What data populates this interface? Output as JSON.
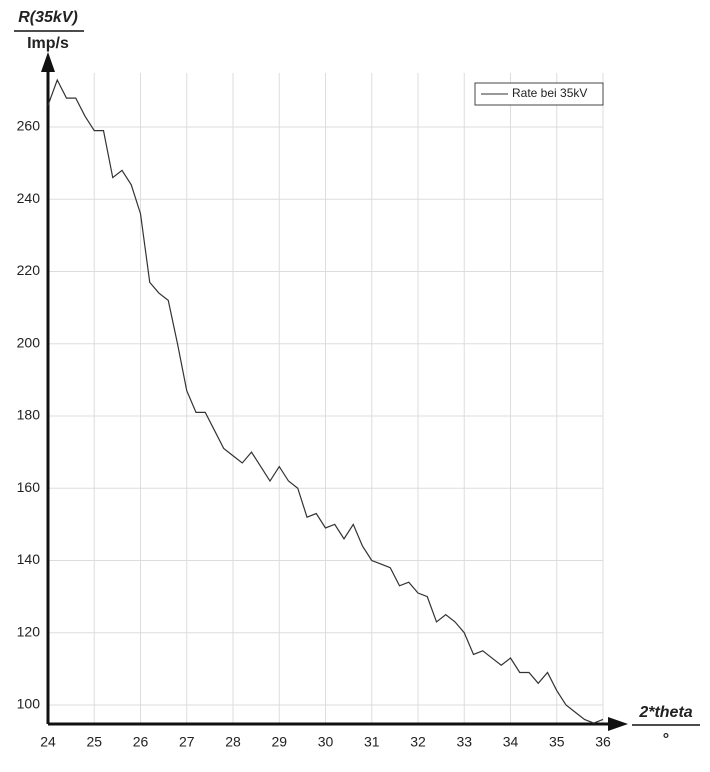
{
  "chart_data": {
    "type": "line",
    "y_label": "R(35kV)",
    "y_unit": "Imp/s",
    "x_label": "2*theta",
    "x_unit": "°",
    "x": [
      24,
      24.2,
      24.4,
      24.6,
      24.8,
      25,
      25.2,
      25.4,
      25.6,
      25.8,
      26,
      26.2,
      26.4,
      26.6,
      26.8,
      27,
      27.2,
      27.4,
      27.6,
      27.8,
      28,
      28.2,
      28.4,
      28.6,
      28.8,
      29,
      29.2,
      29.4,
      29.6,
      29.8,
      30,
      30.2,
      30.4,
      30.6,
      30.8,
      31,
      31.2,
      31.4,
      31.6,
      31.8,
      32,
      32.2,
      32.4,
      32.6,
      32.8,
      33,
      33.2,
      33.4,
      33.6,
      33.8,
      34,
      34.2,
      34.4,
      34.6,
      34.8,
      35,
      35.2,
      35.4,
      35.6,
      35.8,
      36
    ],
    "series": [
      {
        "name": "Rate bei 35kV",
        "color": "#333333",
        "values": [
          266,
          273,
          268,
          268,
          263,
          259,
          259,
          246,
          248,
          244,
          236,
          217,
          214,
          212,
          200,
          187,
          181,
          181,
          176,
          171,
          169,
          167,
          170,
          166,
          162,
          166,
          162,
          160,
          152,
          153,
          149,
          150,
          146,
          150,
          144,
          140,
          139,
          138,
          133,
          134,
          131,
          130,
          123,
          125,
          123,
          120,
          114,
          115,
          113,
          111,
          113,
          109,
          109,
          106,
          109,
          104,
          100,
          98,
          96,
          95,
          96
        ]
      }
    ],
    "xlim": [
      24,
      36
    ],
    "xticks": [
      24,
      25,
      26,
      27,
      28,
      29,
      30,
      31,
      32,
      33,
      34,
      35,
      36
    ],
    "ylim": [
      94.7,
      275
    ],
    "yticks": [
      100,
      120,
      140,
      160,
      180,
      200,
      220,
      240,
      260
    ],
    "grid": true,
    "legend": "top-right"
  }
}
